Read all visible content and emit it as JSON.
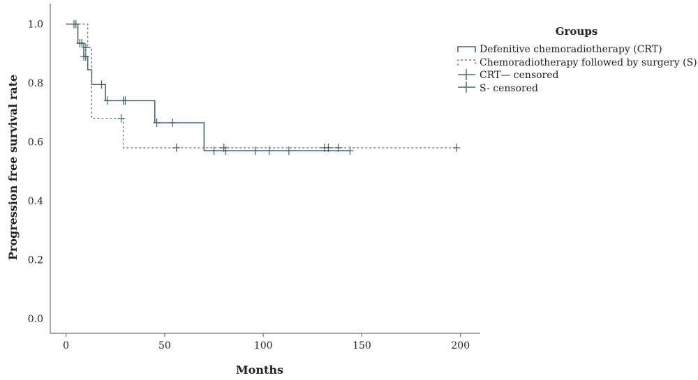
{
  "chart_data": {
    "type": "line",
    "subtype": "kaplan-meier",
    "title": "",
    "xlabel": "Months",
    "ylabel": "Progression free survival rate",
    "xlim": [
      -8,
      210
    ],
    "ylim": [
      -0.05,
      1.07
    ],
    "xticks": [
      0,
      50,
      100,
      150,
      200
    ],
    "yticks": [
      0.0,
      0.2,
      0.4,
      0.6,
      0.8,
      1.0
    ],
    "ytick_labels": [
      "0.0",
      "0.2",
      "0.4",
      "0.6",
      "0.8",
      "1.0"
    ],
    "grid": false,
    "legend": {
      "title": "Groups",
      "placement": "right",
      "entries": [
        "Defenitive chemoradiotherapy (CRT)",
        "Chemoradiotherapy followed by surgery (S)",
        "CRT— censored",
        "S- censored"
      ]
    },
    "series": [
      {
        "name": "Defenitive chemoradiotherapy (CRT)",
        "style": "solid",
        "color": "#4a6670",
        "steps": [
          [
            0,
            1.0
          ],
          [
            6,
            0.935
          ],
          [
            9,
            0.89
          ],
          [
            11,
            0.845
          ],
          [
            13,
            0.795
          ],
          [
            20,
            0.74
          ],
          [
            45,
            0.665
          ],
          [
            70,
            0.57
          ],
          [
            144,
            0.57
          ]
        ],
        "censored": [
          [
            4,
            1.0
          ],
          [
            7,
            0.935
          ],
          [
            8,
            0.935
          ],
          [
            9,
            0.89
          ],
          [
            10,
            0.89
          ],
          [
            18,
            0.795
          ],
          [
            21,
            0.74
          ],
          [
            29,
            0.74
          ],
          [
            30,
            0.74
          ],
          [
            46,
            0.665
          ],
          [
            54,
            0.665
          ],
          [
            75,
            0.57
          ],
          [
            81,
            0.57
          ],
          [
            96,
            0.57
          ],
          [
            103,
            0.57
          ],
          [
            113,
            0.57
          ],
          [
            144,
            0.57
          ]
        ]
      },
      {
        "name": "Chemoradiotherapy followed by surgery (S)",
        "style": "dashed",
        "color": "#6a7f86",
        "steps": [
          [
            0,
            1.0
          ],
          [
            11,
            0.92
          ],
          [
            13,
            0.68
          ],
          [
            29,
            0.58
          ],
          [
            198,
            0.58
          ]
        ],
        "censored": [
          [
            5,
            1.0
          ],
          [
            10,
            0.92
          ],
          [
            28,
            0.68
          ],
          [
            56,
            0.58
          ],
          [
            80,
            0.58
          ],
          [
            131,
            0.58
          ],
          [
            133,
            0.58
          ],
          [
            138,
            0.58
          ],
          [
            198,
            0.58
          ]
        ]
      }
    ]
  }
}
